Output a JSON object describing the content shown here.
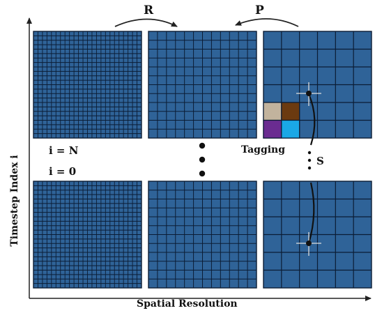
{
  "labels": {
    "x_axis": "Spatial Resolution",
    "y_axis": "Timestep Index i",
    "restrict": "R",
    "prolong": "P",
    "tagging": "Tagging",
    "smooth": "S",
    "i_top": "i = N",
    "i_bottom": "i = 0"
  },
  "grids": {
    "coarse_cells": 6,
    "medium_cells": 12,
    "fine_cells": 24
  },
  "tagged_cells": [
    {
      "name": "tagged-cell-tan",
      "color": "#c2b39d"
    },
    {
      "name": "tagged-cell-brown",
      "color": "#6b3a10"
    },
    {
      "name": "tagged-cell-purple",
      "color": "#6a2c91"
    },
    {
      "name": "tagged-cell-cyan",
      "color": "#1aa7e6"
    }
  ],
  "colors": {
    "grid_fill": "#2f6398",
    "grid_line": "#0b1c34",
    "axis": "#222222",
    "marker": "#dddddd"
  }
}
